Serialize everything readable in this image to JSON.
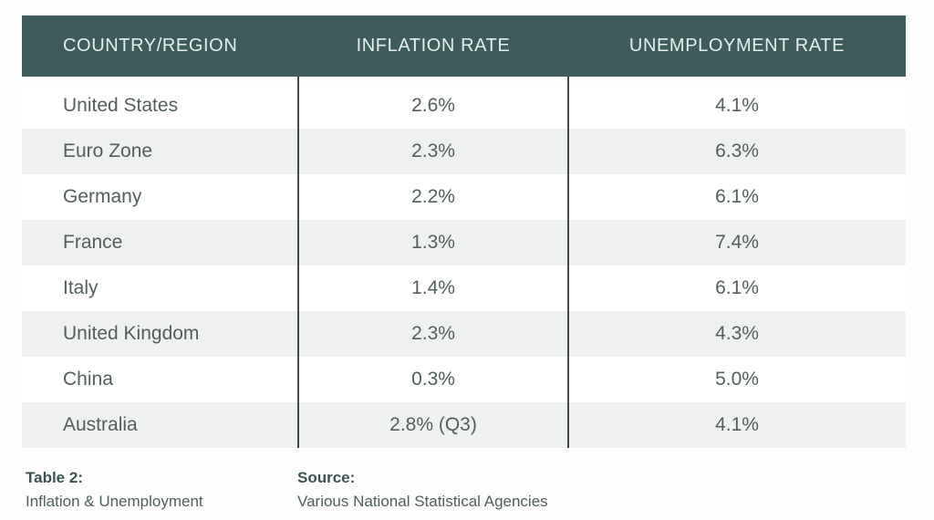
{
  "chart_data": {
    "type": "table",
    "title": "Table 2: Inflation & Unemployment",
    "columns": [
      "COUNTRY/REGION",
      "INFLATION RATE",
      "UNEMPLOYMENT RATE"
    ],
    "rows": [
      [
        "United States",
        "2.6%",
        "4.1%"
      ],
      [
        "Euro Zone",
        "2.3%",
        "6.3%"
      ],
      [
        "Germany",
        "2.2%",
        "6.1%"
      ],
      [
        "France",
        "1.3%",
        "7.4%"
      ],
      [
        "Italy",
        "1.4%",
        "6.1%"
      ],
      [
        "United Kingdom",
        "2.3%",
        "4.3%"
      ],
      [
        "China",
        "0.3%",
        "5.0%"
      ],
      [
        "Australia",
        "2.8% (Q3)",
        "4.1%"
      ]
    ],
    "numeric": {
      "inflation_rate_pct": [
        2.6,
        2.3,
        2.2,
        1.3,
        1.4,
        2.3,
        0.3,
        2.8
      ],
      "unemployment_rate_pct": [
        4.1,
        6.3,
        6.1,
        7.4,
        6.1,
        4.3,
        5.0,
        4.1
      ]
    },
    "layout": {
      "striped_rows": true,
      "stripe_pattern": "even-white-odd-gray",
      "column_dividers": true,
      "grid": "off"
    }
  },
  "footer": {
    "caption_label": "Table 2:",
    "caption_text": "Inflation & Unemployment",
    "source_label": "Source:",
    "source_text": "Various National Statistical Agencies"
  },
  "colors": {
    "page_bg": "#fdfdfd",
    "header_bg": "#3d5c5b",
    "header_text": "#e3efed",
    "body_text": "#51605f",
    "stripe": "#eff1f0",
    "divider": "#3e4a49",
    "footer_label": "#3c5250"
  }
}
